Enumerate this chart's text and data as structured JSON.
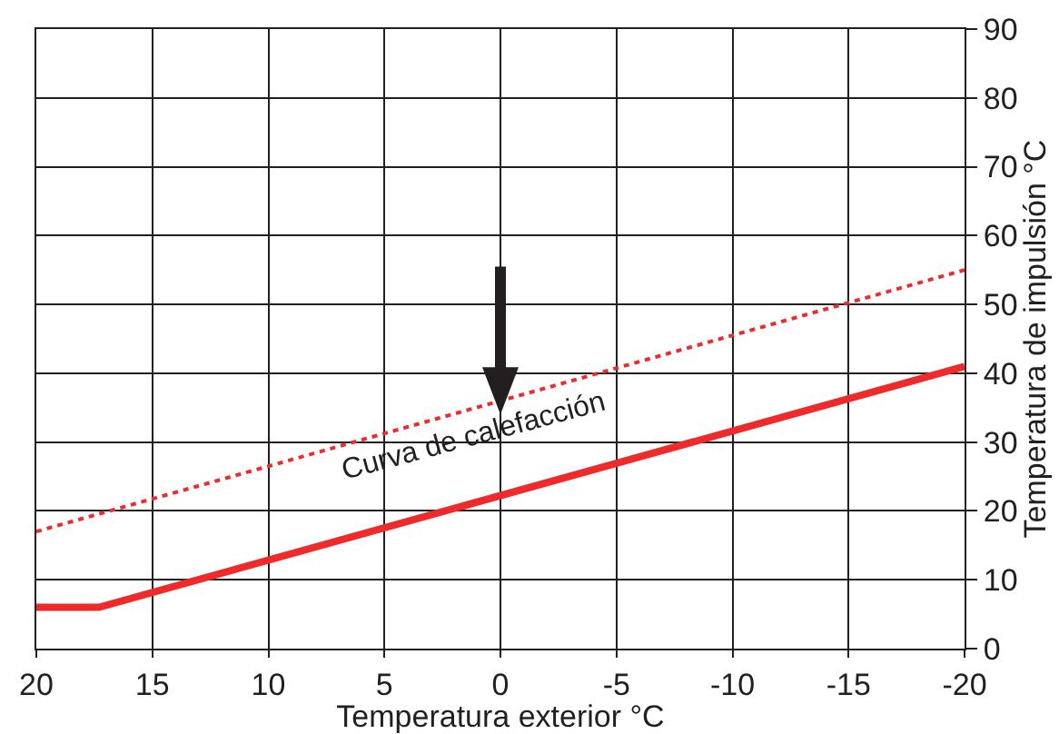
{
  "chart_data": {
    "type": "line",
    "xlabel": "Temperatura exterior °C",
    "ylabel": "Temperatura de impulsión °C",
    "xlim": [
      20,
      -20
    ],
    "xticks": [
      20,
      15,
      10,
      5,
      0,
      -5,
      -10,
      -15,
      -20
    ],
    "ylim": [
      0,
      90
    ],
    "yticks": [
      0,
      10,
      20,
      30,
      40,
      50,
      60,
      70,
      80,
      90
    ],
    "series": [
      {
        "color": "#ee2a2a",
        "x": [
          20,
          17.3,
          -20
        ],
        "values": [
          6,
          6,
          41
        ],
        "line_style": "solid"
      },
      {
        "color": "#ee2a2a",
        "x": [
          20,
          -20
        ],
        "values": [
          17,
          55
        ],
        "line_style": "dotted"
      }
    ],
    "annotations": [
      "Curva de calefacción"
    ],
    "grid": true,
    "legend": false,
    "marker": "none"
  }
}
